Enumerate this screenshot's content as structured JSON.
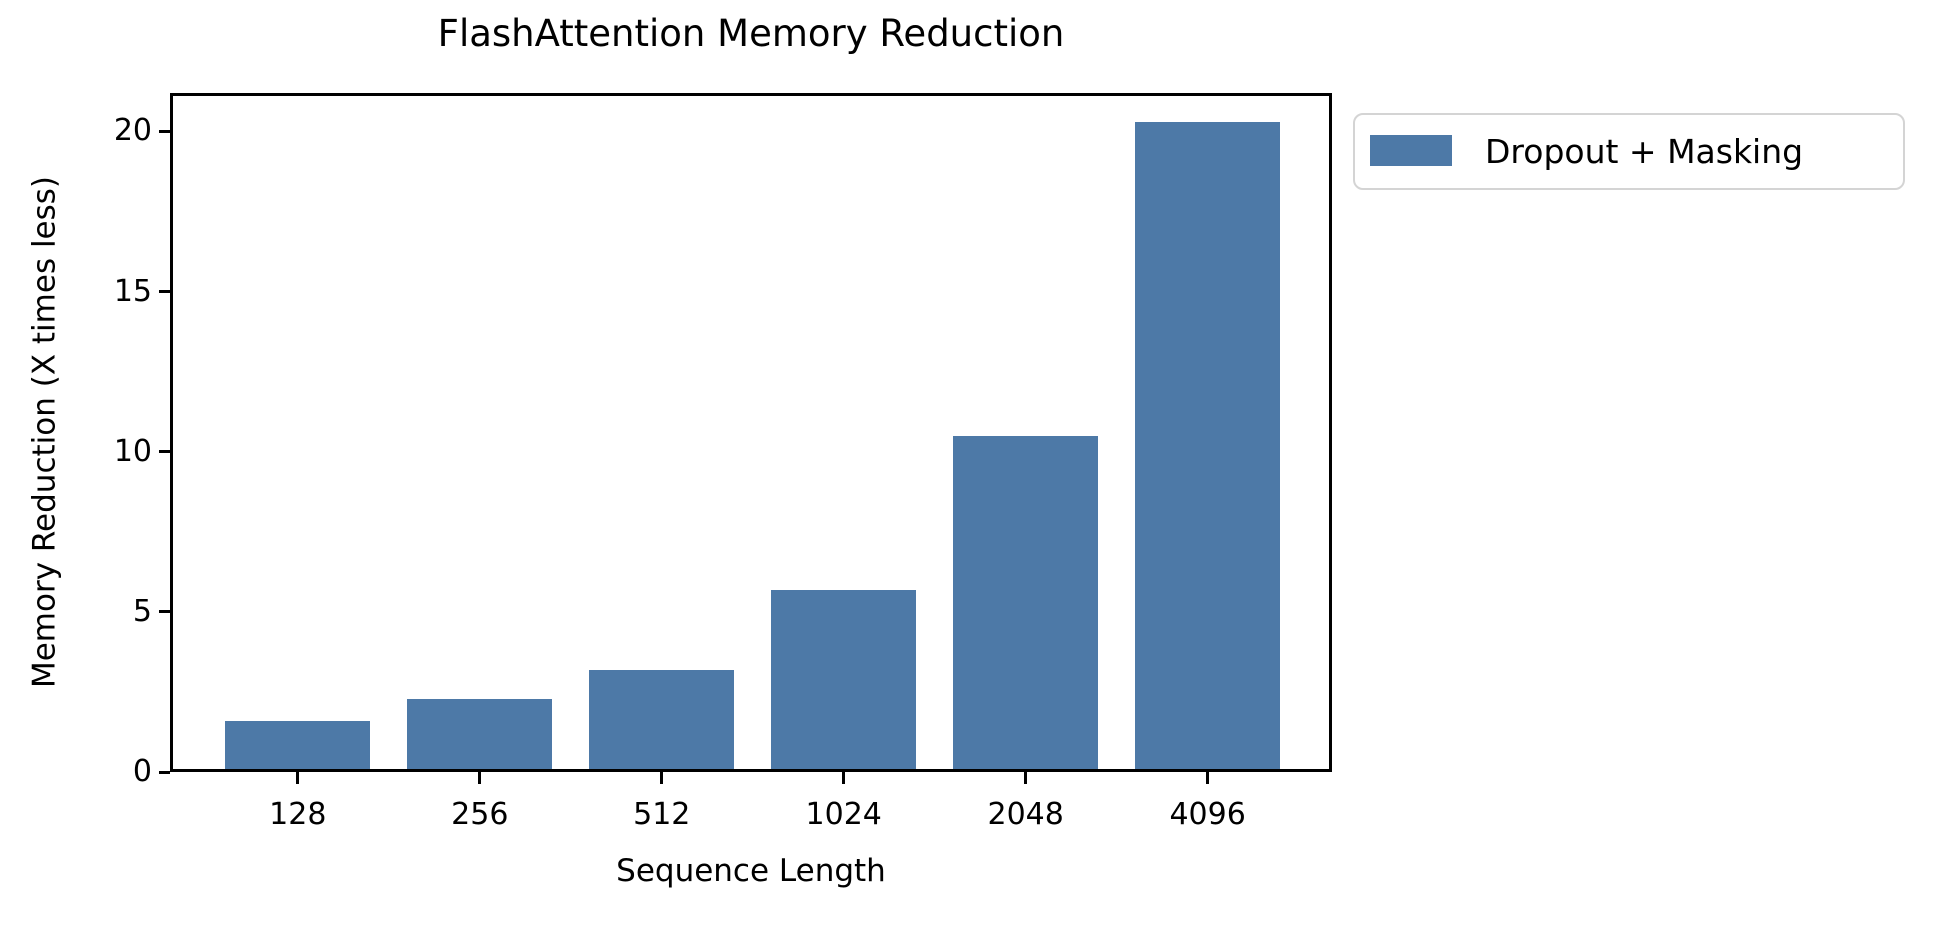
{
  "chart_data": {
    "type": "bar",
    "title": "FlashAttention Memory Reduction",
    "xlabel": "Sequence Length",
    "ylabel": "Memory Reduction (X times less)",
    "categories": [
      "128",
      "256",
      "512",
      "1024",
      "2048",
      "4096"
    ],
    "series": [
      {
        "name": "Dropout + Masking",
        "values": [
          1.5,
          2.2,
          3.1,
          5.6,
          10.4,
          20.2
        ]
      }
    ],
    "ylim": [
      0,
      21.2
    ],
    "yticks": [
      0,
      5,
      10,
      15,
      20
    ],
    "bar_color": "#4d79a7",
    "legend_position": "outside upper right",
    "grid": false,
    "spine_color": "#000000",
    "background_color": "#ffffff"
  }
}
